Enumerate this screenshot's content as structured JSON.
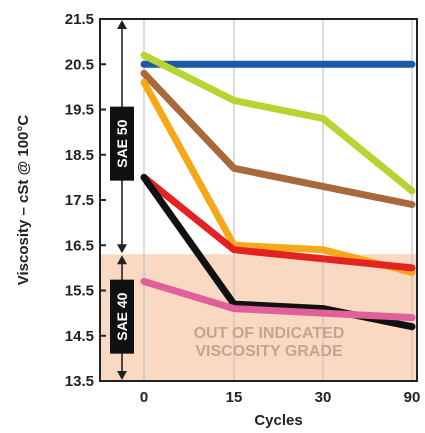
{
  "chart_data": {
    "type": "line",
    "title": "",
    "xlabel": "Cycles",
    "ylabel": "Viscosity – cSt @ 100°C",
    "categories": [
      "0",
      "15",
      "30",
      "90"
    ],
    "yticks": [
      "13.5",
      "14.5",
      "15.5",
      "16.5",
      "17.5",
      "18.5",
      "19.5",
      "20.5",
      "21.5"
    ],
    "ylim": [
      13.5,
      21.5
    ],
    "grid": "vertical",
    "series": [
      {
        "values": [
          20.5,
          20.5,
          20.5,
          20.5
        ],
        "color": "#1a5aa8"
      },
      {
        "values": [
          20.7,
          19.7,
          19.3,
          17.7
        ],
        "color": "#b8d433"
      },
      {
        "values": [
          20.3,
          18.2,
          17.8,
          17.4
        ],
        "color": "#a86a3c"
      },
      {
        "values": [
          20.1,
          16.5,
          16.4,
          15.9
        ],
        "color": "#f7a818"
      },
      {
        "values": [
          18.0,
          16.4,
          16.2,
          16.0
        ],
        "color": "#e52222"
      },
      {
        "values": [
          18.0,
          15.2,
          15.1,
          14.7
        ],
        "color": "#111111"
      },
      {
        "values": [
          15.7,
          15.1,
          15.0,
          14.9
        ],
        "color": "#e0609a"
      }
    ],
    "bands": [
      {
        "label": "SAE 50",
        "from": 16.3,
        "to": 21.5
      },
      {
        "label": "SAE 40",
        "from": 13.5,
        "to": 16.3
      }
    ],
    "annotations": [
      {
        "lines": [
          "OUT OF INDICATED",
          "VISCOSITY GRADE"
        ]
      }
    ],
    "colors": {
      "shade": "#fad9c3",
      "band_label_bg": "#111111",
      "zone_label": "#c3a68f",
      "grid": "#bbbbbb",
      "frame": "#222222"
    }
  }
}
